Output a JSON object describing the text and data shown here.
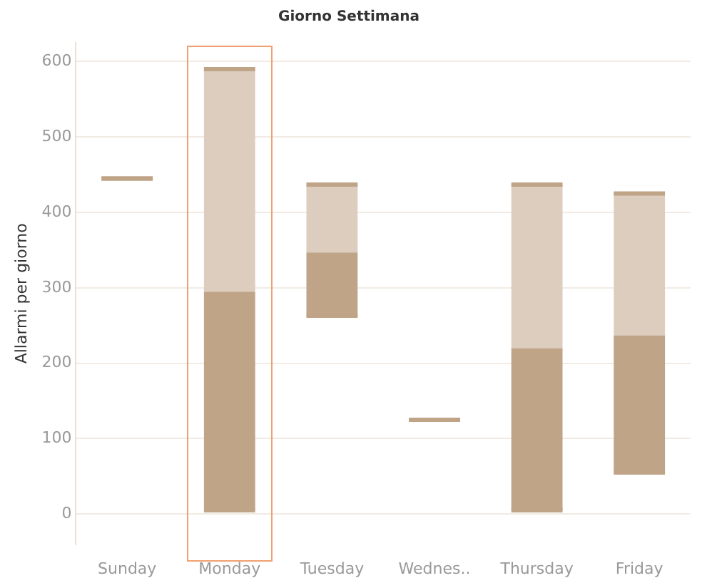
{
  "chart_data": {
    "type": "box",
    "title": "Giorno Settimana",
    "ylabel": "Allarmi per giorno",
    "categories": [
      "Sunday",
      "Monday",
      "Tuesday",
      "Wednes..",
      "Thursday",
      "Friday"
    ],
    "boxes": [
      {
        "low": 445,
        "q1": 445,
        "median": 445,
        "q3": 445,
        "high": 445
      },
      {
        "low": 5,
        "q1": 5,
        "median": 295,
        "q3": 590,
        "high": 590
      },
      {
        "low": 263,
        "q1": 263,
        "median": 347,
        "q3": 437,
        "high": 437
      },
      {
        "low": 125,
        "q1": 125,
        "median": 125,
        "q3": 125,
        "high": 125
      },
      {
        "low": 5,
        "q1": 5,
        "median": 220,
        "q3": 437,
        "high": 437
      },
      {
        "low": 55,
        "q1": 55,
        "median": 237,
        "q3": 425,
        "high": 425
      }
    ],
    "color": "#bfa488",
    "ylim": [
      -40,
      625
    ],
    "yticks": [
      0,
      100,
      200,
      300,
      400,
      500,
      600
    ],
    "grid": "y",
    "legend": false
  }
}
